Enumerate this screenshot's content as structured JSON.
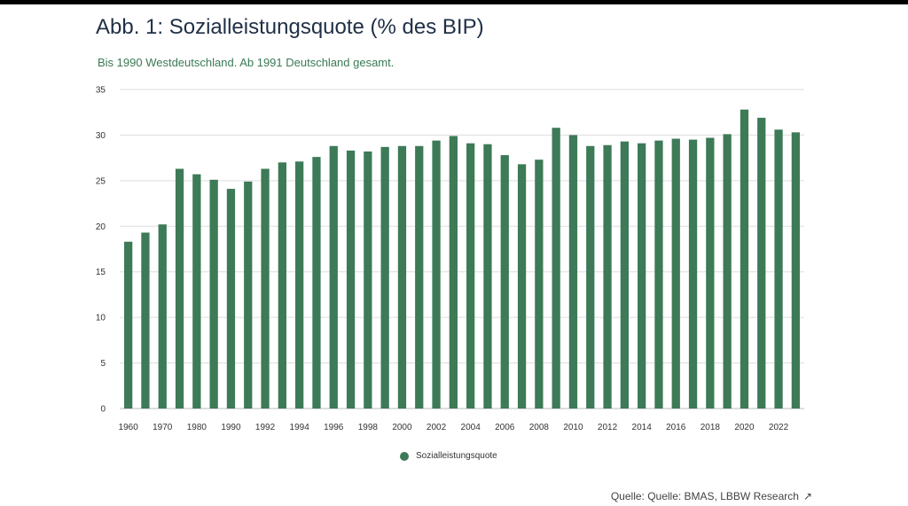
{
  "header": {
    "title": "Abb. 1: Sozialleistungsquote (% des BIP)",
    "subtitle": "Bis 1990 Westdeutschland. Ab 1991 Deutschland gesamt."
  },
  "footer": {
    "source": "Quelle: Quelle: BMAS, LBBW Research",
    "source_icon": "external-arrow-icon"
  },
  "colors": {
    "bar": "#3d7a57",
    "grid": "#dddddd",
    "text": "#333333"
  },
  "chart_data": {
    "type": "bar",
    "title": "Abb. 1: Sozialleistungsquote (% des BIP)",
    "subtitle": "Bis 1990 Westdeutschland. Ab 1991 Deutschland gesamt.",
    "xlabel": "",
    "ylabel": "",
    "ylim": [
      0,
      35
    ],
    "yticks": [
      0,
      5,
      10,
      15,
      20,
      25,
      30,
      35
    ],
    "grid": true,
    "legend_position": "bottom-center",
    "categories": [
      "1960",
      "1965",
      "1970",
      "1975",
      "1980",
      "1985",
      "1990",
      "1991",
      "1992",
      "1993",
      "1994",
      "1995",
      "1996",
      "1997",
      "1998",
      "1999",
      "2000",
      "2001",
      "2002",
      "2003",
      "2004",
      "2005",
      "2006",
      "2007",
      "2008",
      "2009",
      "2010",
      "2011",
      "2012",
      "2013",
      "2014",
      "2015",
      "2016",
      "2017",
      "2018",
      "2019",
      "2020",
      "2021",
      "2022",
      "2023"
    ],
    "xtick_labels": [
      "1960",
      "1970",
      "1980",
      "1990",
      "1992",
      "1994",
      "1996",
      "1998",
      "2000",
      "2002",
      "2004",
      "2006",
      "2008",
      "2010",
      "2012",
      "2014",
      "2016",
      "2018",
      "2020",
      "2022"
    ],
    "series": [
      {
        "name": "Sozialleistungsquote",
        "values": [
          18.3,
          19.3,
          20.2,
          26.3,
          25.7,
          25.1,
          24.1,
          24.9,
          26.3,
          27.0,
          27.1,
          27.6,
          28.8,
          28.3,
          28.2,
          28.7,
          28.8,
          28.8,
          29.4,
          29.9,
          29.1,
          29.0,
          27.8,
          26.8,
          27.3,
          30.8,
          30.0,
          28.8,
          28.9,
          29.3,
          29.1,
          29.4,
          29.6,
          29.5,
          29.7,
          30.1,
          32.8,
          31.9,
          30.6,
          30.3
        ]
      }
    ]
  }
}
